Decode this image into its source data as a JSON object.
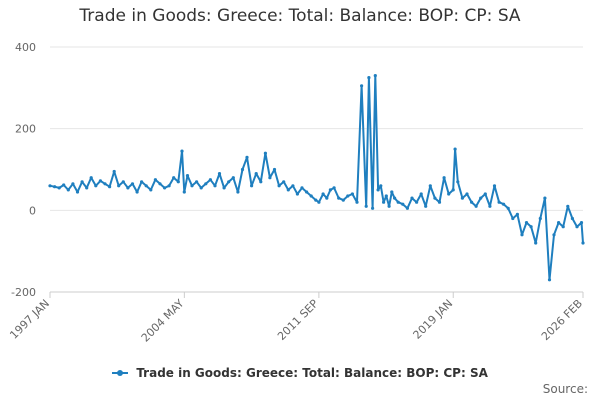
{
  "chart_data": {
    "type": "line",
    "title": "Trade in Goods: Greece: Total: Balance: BOP: CP: SA",
    "xlabel": "",
    "ylabel": "",
    "ylim": [
      -200,
      400
    ],
    "yticks": [
      400,
      200,
      0,
      -200
    ],
    "xticks": [
      {
        "label": "1997 JAN",
        "t": 1997.0
      },
      {
        "label": "2004 MAY",
        "t": 2004.33
      },
      {
        "label": "2011 SEP",
        "t": 2011.67
      },
      {
        "label": "2019 JAN",
        "t": 2019.0
      },
      {
        "label": "2026 FEB",
        "t": 2026.08
      }
    ],
    "xlim": [
      1997.0,
      2026.08
    ],
    "grid": "horizontal",
    "legend_position": "bottom",
    "series": [
      {
        "name": "Trade in Goods: Greece: Total: Balance: BOP: CP: SA",
        "color": "#1f7fbf",
        "x": [
          1997.0,
          1997.25,
          1997.5,
          1997.75,
          1998.0,
          1998.25,
          1998.5,
          1998.75,
          1999.0,
          1999.25,
          1999.5,
          1999.75,
          2000.0,
          2000.25,
          2000.5,
          2000.75,
          2001.0,
          2001.25,
          2001.5,
          2001.75,
          2002.0,
          2002.25,
          2002.5,
          2002.75,
          2003.0,
          2003.25,
          2003.5,
          2003.75,
          2004.0,
          2004.2,
          2004.33,
          2004.5,
          2004.75,
          2005.0,
          2005.25,
          2005.5,
          2005.75,
          2006.0,
          2006.25,
          2006.5,
          2006.75,
          2007.0,
          2007.25,
          2007.5,
          2007.75,
          2008.0,
          2008.25,
          2008.5,
          2008.75,
          2009.0,
          2009.25,
          2009.5,
          2009.75,
          2010.0,
          2010.25,
          2010.5,
          2010.75,
          2011.0,
          2011.25,
          2011.5,
          2011.67,
          2011.9,
          2012.1,
          2012.3,
          2012.5,
          2012.75,
          2013.0,
          2013.25,
          2013.5,
          2013.75,
          2014.0,
          2014.25,
          2014.4,
          2014.6,
          2014.75,
          2014.9,
          2015.05,
          2015.2,
          2015.35,
          2015.5,
          2015.65,
          2015.8,
          2016.0,
          2016.25,
          2016.5,
          2016.75,
          2017.0,
          2017.25,
          2017.5,
          2017.75,
          2018.0,
          2018.25,
          2018.5,
          2018.75,
          2019.0,
          2019.1,
          2019.25,
          2019.5,
          2019.75,
          2020.0,
          2020.25,
          2020.5,
          2020.75,
          2021.0,
          2021.25,
          2021.5,
          2021.75,
          2022.0,
          2022.25,
          2022.5,
          2022.75,
          2023.0,
          2023.25,
          2023.5,
          2023.75,
          2024.0,
          2024.25,
          2024.5,
          2024.75,
          2025.0,
          2025.25,
          2025.5,
          2025.75,
          2026.0,
          2026.08
        ],
        "values": [
          60,
          58,
          55,
          62,
          50,
          65,
          45,
          70,
          55,
          80,
          60,
          72,
          65,
          58,
          95,
          60,
          70,
          55,
          65,
          45,
          70,
          60,
          50,
          75,
          65,
          55,
          60,
          80,
          70,
          145,
          45,
          85,
          60,
          70,
          55,
          65,
          75,
          60,
          90,
          55,
          70,
          80,
          45,
          100,
          130,
          60,
          90,
          70,
          140,
          80,
          100,
          60,
          70,
          50,
          60,
          40,
          55,
          45,
          35,
          25,
          20,
          40,
          30,
          50,
          55,
          30,
          25,
          35,
          40,
          20,
          305,
          10,
          325,
          5,
          330,
          50,
          60,
          20,
          35,
          10,
          45,
          30,
          20,
          15,
          5,
          30,
          20,
          40,
          10,
          60,
          30,
          20,
          80,
          40,
          50,
          150,
          70,
          30,
          40,
          20,
          10,
          30,
          40,
          10,
          60,
          20,
          15,
          5,
          -20,
          -10,
          -60,
          -30,
          -40,
          -80,
          -20,
          30,
          -170,
          -60,
          -30,
          -40,
          10,
          -20,
          -40,
          -30,
          -80
        ]
      }
    ],
    "source_label": "Source:"
  }
}
